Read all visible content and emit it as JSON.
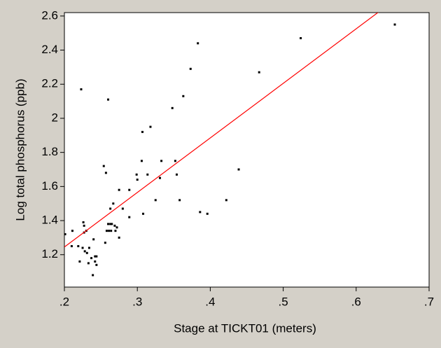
{
  "chart_data": {
    "type": "scatter",
    "x_label": "Stage at TICKT01 (meters)",
    "y_label": "Log total phosphorus (ppb)",
    "xlim": [
      0.2,
      0.7
    ],
    "ylim": [
      1.01,
      2.62
    ],
    "xticks": [
      {
        "value": 0.2,
        "label": ".2"
      },
      {
        "value": 0.3,
        "label": ".3"
      },
      {
        "value": 0.4,
        "label": ".4"
      },
      {
        "value": 0.5,
        "label": ".5"
      },
      {
        "value": 0.6,
        "label": ".6"
      },
      {
        "value": 0.7,
        "label": ".7"
      }
    ],
    "yticks": [
      1.2,
      1.4,
      1.6,
      1.8,
      2,
      2.2,
      2.4,
      2.6
    ],
    "grid": false,
    "series": [
      {
        "type": "scatter",
        "color": "#000000",
        "x": [
          0.201,
          0.211,
          0.21,
          0.219,
          0.221,
          0.223,
          0.226,
          0.227,
          0.227,
          0.23,
          0.225,
          0.228,
          0.231,
          0.234,
          0.233,
          0.237,
          0.239,
          0.24,
          0.242,
          0.242,
          0.244,
          0.244,
          0.254,
          0.257,
          0.256,
          0.258,
          0.26,
          0.26,
          0.261,
          0.263,
          0.264,
          0.265,
          0.263,
          0.267,
          0.269,
          0.27,
          0.272,
          0.275,
          0.275,
          0.28,
          0.289,
          0.289,
          0.299,
          0.3,
          0.306,
          0.307,
          0.308,
          0.314,
          0.318,
          0.325,
          0.331,
          0.333,
          0.348,
          0.352,
          0.354,
          0.358,
          0.363,
          0.373,
          0.383,
          0.386,
          0.396,
          0.422,
          0.439,
          0.467,
          0.524,
          0.653
        ],
        "values": [
          1.32,
          1.34,
          1.25,
          1.25,
          1.16,
          2.17,
          1.39,
          1.37,
          1.33,
          1.34,
          1.24,
          1.22,
          1.21,
          1.24,
          1.15,
          1.18,
          1.08,
          1.29,
          1.19,
          1.16,
          1.19,
          1.14,
          1.72,
          1.68,
          1.27,
          1.34,
          1.38,
          2.11,
          1.34,
          1.38,
          1.34,
          1.38,
          1.47,
          1.5,
          1.37,
          1.34,
          1.36,
          1.58,
          1.3,
          1.47,
          1.58,
          1.42,
          1.67,
          1.64,
          1.75,
          1.92,
          1.44,
          1.67,
          1.95,
          1.52,
          1.65,
          1.75,
          2.06,
          1.75,
          1.67,
          1.52,
          2.13,
          2.29,
          2.44,
          1.45,
          1.44,
          1.52,
          1.7,
          2.27,
          2.47,
          2.55
        ]
      },
      {
        "type": "line",
        "color": "#ff0000",
        "x": [
          0.2,
          0.7
        ],
        "values": [
          1.245,
          2.845
        ]
      }
    ]
  }
}
